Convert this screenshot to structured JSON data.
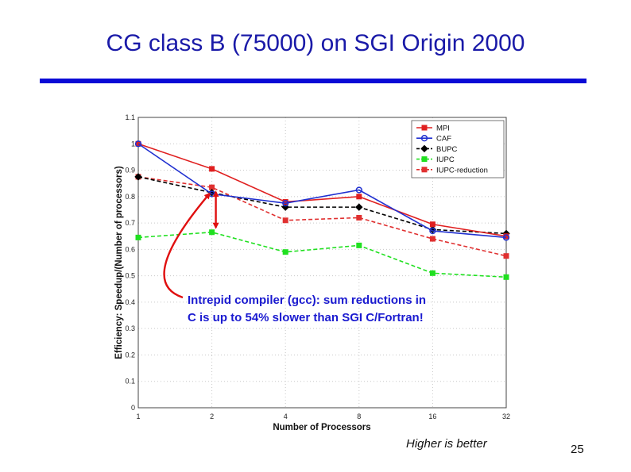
{
  "slide": {
    "title": "CG class B (75000) on SGI Origin 2000",
    "footer_note": "Higher is better",
    "page_number": "25"
  },
  "chart_data": {
    "type": "line",
    "title": "",
    "xlabel": "Number of Processors",
    "ylabel": "Efficiency: Speedup/(Number of processors)",
    "categories": [
      "1",
      "2",
      "4",
      "8",
      "16",
      "32"
    ],
    "x_scale": "categorical (log2 processor counts, evenly spaced)",
    "ylim": [
      0,
      1.1
    ],
    "yticks": [
      "0",
      "0.1",
      "0.2",
      "0.3",
      "0.4",
      "0.5",
      "0.6",
      "0.7",
      "0.8",
      "0.9",
      "1",
      "1.1"
    ],
    "grid": true,
    "legend_position": "top-right",
    "series": [
      {
        "name": "MPI",
        "color": "#e02020",
        "dash": "solid",
        "marker": "square",
        "values": [
          1.0,
          0.905,
          0.78,
          0.8,
          0.695,
          0.65
        ]
      },
      {
        "name": "CAF",
        "color": "#2030d0",
        "dash": "solid",
        "marker": "circle",
        "values": [
          1.0,
          0.81,
          0.775,
          0.825,
          0.67,
          0.645
        ]
      },
      {
        "name": "BUPC",
        "color": "#000000",
        "dash": "dashed",
        "marker": "diamond",
        "values": [
          0.875,
          0.815,
          0.76,
          0.76,
          0.675,
          0.66
        ]
      },
      {
        "name": "IUPC",
        "color": "#20e020",
        "dash": "dashed",
        "marker": "square",
        "values": [
          0.645,
          0.665,
          0.59,
          0.615,
          0.51,
          0.495
        ]
      },
      {
        "name": "IUPC-reduction",
        "color": "#e03030",
        "dash": "dashed",
        "marker": "square",
        "values": [
          0.875,
          0.835,
          0.71,
          0.72,
          0.64,
          0.575
        ]
      }
    ],
    "annotation": {
      "line1": "Intrepid compiler (gcc): sum reductions in",
      "line2": "C is up to 54% slower than SGI C/Fortran!",
      "arrow_color": "#e01010",
      "highlight_category": "2",
      "highlight_from": 0.665,
      "highlight_to": 0.835
    }
  }
}
